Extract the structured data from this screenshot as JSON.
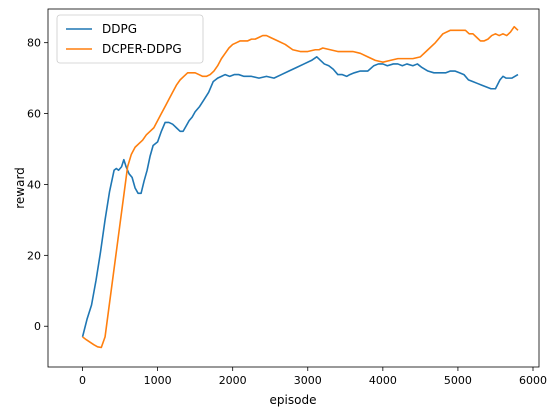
{
  "chart_data": {
    "type": "line",
    "title": "",
    "xlabel": "episode",
    "ylabel": "reward",
    "xlim": [
      -460,
      6080
    ],
    "ylim": [
      -11.5,
      89.5
    ],
    "xticks": [
      0,
      1000,
      2000,
      3000,
      4000,
      5000,
      6000
    ],
    "yticks": [
      0,
      20,
      40,
      60,
      80
    ],
    "grid": false,
    "legend_position": "upper-left",
    "series": [
      {
        "name": "DDPG",
        "color": "#1f77b4",
        "x": [
          0,
          60,
          120,
          180,
          240,
          300,
          360,
          420,
          450,
          480,
          520,
          550,
          580,
          620,
          660,
          700,
          740,
          780,
          820,
          860,
          900,
          940,
          1000,
          1050,
          1100,
          1150,
          1200,
          1250,
          1300,
          1340,
          1380,
          1420,
          1460,
          1500,
          1560,
          1620,
          1680,
          1740,
          1800,
          1850,
          1900,
          1960,
          2020,
          2080,
          2150,
          2250,
          2350,
          2450,
          2550,
          2650,
          2750,
          2850,
          2950,
          3050,
          3120,
          3170,
          3220,
          3280,
          3340,
          3400,
          3460,
          3520,
          3560,
          3620,
          3700,
          3800,
          3880,
          3940,
          4000,
          4060,
          4140,
          4200,
          4260,
          4320,
          4400,
          4460,
          4520,
          4600,
          4680,
          4760,
          4840,
          4900,
          4960,
          5020,
          5080,
          5140,
          5200,
          5260,
          5320,
          5380,
          5440,
          5500,
          5560,
          5600,
          5640,
          5680,
          5720,
          5760,
          5800
        ],
        "values": [
          -3,
          2,
          6,
          13,
          21,
          30,
          38,
          44,
          44.5,
          44,
          45,
          47,
          45,
          43,
          42,
          39,
          37.5,
          37.5,
          41,
          44,
          48,
          51,
          52,
          55,
          57.5,
          57.5,
          57,
          56,
          55,
          55,
          56.5,
          58,
          59,
          60.5,
          62,
          64,
          66,
          69,
          70,
          70.5,
          71,
          70.5,
          71,
          71,
          70.5,
          70.5,
          70,
          70.5,
          70,
          71,
          72,
          73,
          74,
          75,
          76,
          75,
          74,
          73.5,
          72.5,
          71,
          71,
          70.5,
          71,
          71.5,
          72,
          72,
          73.5,
          74,
          74,
          73.5,
          74,
          74,
          73.5,
          74,
          73.5,
          74,
          73,
          72,
          71.5,
          71.5,
          71.5,
          72,
          72,
          71.5,
          71,
          69.5,
          69,
          68.5,
          68,
          67.5,
          67,
          67,
          69.5,
          70.5,
          70,
          70,
          70,
          70.5,
          71
        ]
      },
      {
        "name": "DCPER-DDPG",
        "color": "#ff7f0e",
        "x": [
          0,
          50,
          100,
          150,
          200,
          250,
          300,
          350,
          400,
          450,
          500,
          550,
          600,
          650,
          700,
          750,
          800,
          850,
          900,
          950,
          1000,
          1050,
          1100,
          1150,
          1200,
          1250,
          1300,
          1350,
          1400,
          1450,
          1500,
          1550,
          1600,
          1650,
          1700,
          1750,
          1800,
          1850,
          1900,
          1950,
          2000,
          2050,
          2100,
          2150,
          2200,
          2250,
          2300,
          2350,
          2400,
          2450,
          2500,
          2600,
          2700,
          2800,
          2900,
          3000,
          3100,
          3150,
          3200,
          3300,
          3400,
          3500,
          3600,
          3700,
          3800,
          3900,
          4000,
          4100,
          4200,
          4300,
          4400,
          4500,
          4600,
          4700,
          4800,
          4900,
          4950,
          5000,
          5050,
          5100,
          5150,
          5200,
          5250,
          5300,
          5350,
          5400,
          5450,
          5500,
          5550,
          5600,
          5650,
          5700,
          5750,
          5800
        ],
        "values": [
          -3,
          -3.8,
          -4.5,
          -5.2,
          -5.8,
          -6,
          -3,
          5,
          13,
          21,
          29,
          37,
          45,
          48.5,
          50.5,
          51.5,
          52.5,
          54,
          55,
          56,
          58,
          60,
          62,
          64,
          66,
          68,
          69.5,
          70.5,
          71.5,
          71.5,
          71.5,
          71,
          70.5,
          70.5,
          71,
          72,
          73.5,
          75.5,
          77,
          78.5,
          79.5,
          80,
          80.5,
          80.5,
          80.5,
          81,
          81,
          81.5,
          82,
          82,
          81.5,
          80.5,
          79.5,
          78,
          77.5,
          77.5,
          78,
          78,
          78.5,
          78,
          77.5,
          77.5,
          77.5,
          77,
          76,
          75,
          74.5,
          75,
          75.5,
          75.5,
          75.5,
          76,
          78,
          80,
          82.5,
          83.5,
          83.5,
          83.5,
          83.5,
          83.5,
          82.5,
          82.5,
          81.5,
          80.5,
          80.5,
          81,
          82,
          82.5,
          82,
          82.5,
          82,
          83,
          84.5,
          83.5
        ]
      }
    ]
  }
}
